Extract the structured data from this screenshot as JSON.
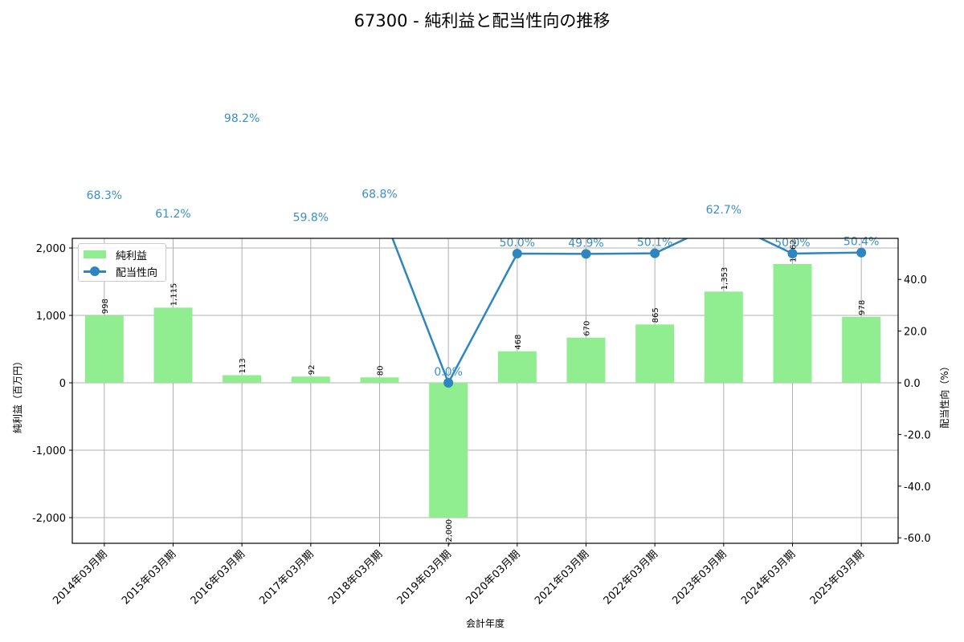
{
  "chart_data": {
    "type": "bar+line",
    "title": "67300 - 純利益と配当性向の推移",
    "xlabel": "会計年度",
    "ylabel_left": "純利益（百万円）",
    "ylabel_right": "配当性向（%）",
    "categories": [
      "2014年03月期",
      "2015年03月期",
      "2016年03月期",
      "2017年03月期",
      "2018年03月期",
      "2019年03月期",
      "2020年03月期",
      "2021年03月期",
      "2022年03月期",
      "2023年03月期",
      "2024年03月期",
      "2025年03月期"
    ],
    "series": [
      {
        "name": "純利益",
        "type": "bar",
        "axis": "left",
        "color": "#90ee90",
        "values": [
          998,
          1115,
          113,
          92,
          80,
          -2000,
          468,
          670,
          865,
          1353,
          1762,
          978
        ],
        "labels": [
          "998",
          "1,115",
          "113",
          "92",
          "80",
          "-2,000",
          "468",
          "670",
          "865",
          "1,353",
          "1,762",
          "978"
        ]
      },
      {
        "name": "配当性向",
        "type": "line",
        "axis": "right",
        "color": "#2e86c1",
        "values": [
          68.3,
          61.2,
          98.2,
          59.8,
          68.8,
          0.0,
          50.0,
          49.9,
          50.1,
          62.7,
          50.0,
          50.4
        ],
        "labels": [
          "68.3%",
          "61.2%",
          "98.2%",
          "59.8%",
          "68.8%",
          "0.0%",
          "50.0%",
          "49.9%",
          "50.1%",
          "62.7%",
          "50.0%",
          "50.4%"
        ]
      }
    ],
    "ylim_left": [
      -2400,
      2150
    ],
    "yticks_left": [
      "2,000",
      "1,000",
      "0",
      "-1,000",
      "-2,000"
    ],
    "ylim_right": [
      -62,
      56
    ],
    "yticks_right": [
      "40.0",
      "20.0",
      "0.0",
      "-20.0",
      "-40.0",
      "-60.0"
    ],
    "grid": true,
    "legend_position": "upper left"
  },
  "legend": {
    "bar_label": "純利益",
    "line_label": "配当性向"
  }
}
